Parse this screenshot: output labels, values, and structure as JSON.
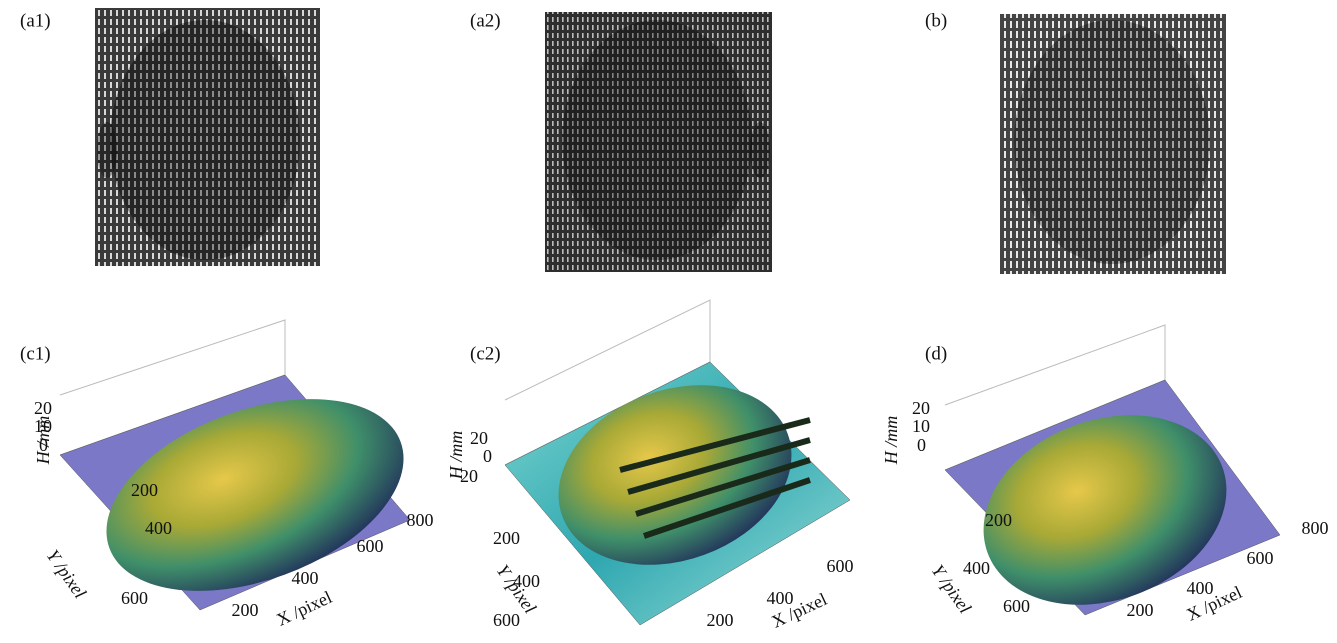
{
  "panels": [
    {
      "label": "(a1)"
    },
    {
      "label": "(a2)"
    },
    {
      "label": "(b)"
    }
  ],
  "plots": [
    {
      "label": "(c1)",
      "z_label": "H /mm",
      "z_ticks": [
        "20",
        "10",
        "0"
      ],
      "y_label": "Y /pixel",
      "y_ticks": [
        "200",
        "400",
        "600"
      ],
      "x_label": "X /pixel",
      "x_ticks": [
        "200",
        "400",
        "600",
        "800"
      ]
    },
    {
      "label": "(c2)",
      "z_label": "H /mm",
      "z_ticks": [
        "20",
        "0",
        "−20"
      ],
      "y_label": "Y /pixel",
      "y_ticks": [
        "200",
        "400",
        "600"
      ],
      "x_label": "X /pixel",
      "x_ticks": [
        "200",
        "400",
        "600"
      ]
    },
    {
      "label": "(d)",
      "z_label": "H /mm",
      "z_ticks": [
        "20",
        "10",
        "0"
      ],
      "y_label": "Y /pixel",
      "y_ticks": [
        "200",
        "400",
        "600"
      ],
      "x_label": "X /pixel",
      "x_ticks": [
        "200",
        "400",
        "600",
        "800"
      ]
    }
  ]
}
